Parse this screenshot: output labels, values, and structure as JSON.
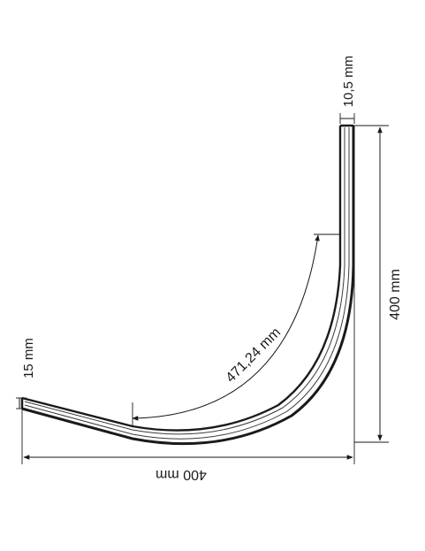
{
  "dimensions": {
    "width_label": "400 mm",
    "height_label": "400 mm",
    "arc_length_label": "471,24 mm",
    "end_thickness_label": "15 mm",
    "top_thickness_label": "10,5 mm"
  },
  "colors": {
    "line": "#1a1a1a",
    "profile_fill": "#f4f4f4",
    "profile_dark": "#3a3a3a"
  }
}
